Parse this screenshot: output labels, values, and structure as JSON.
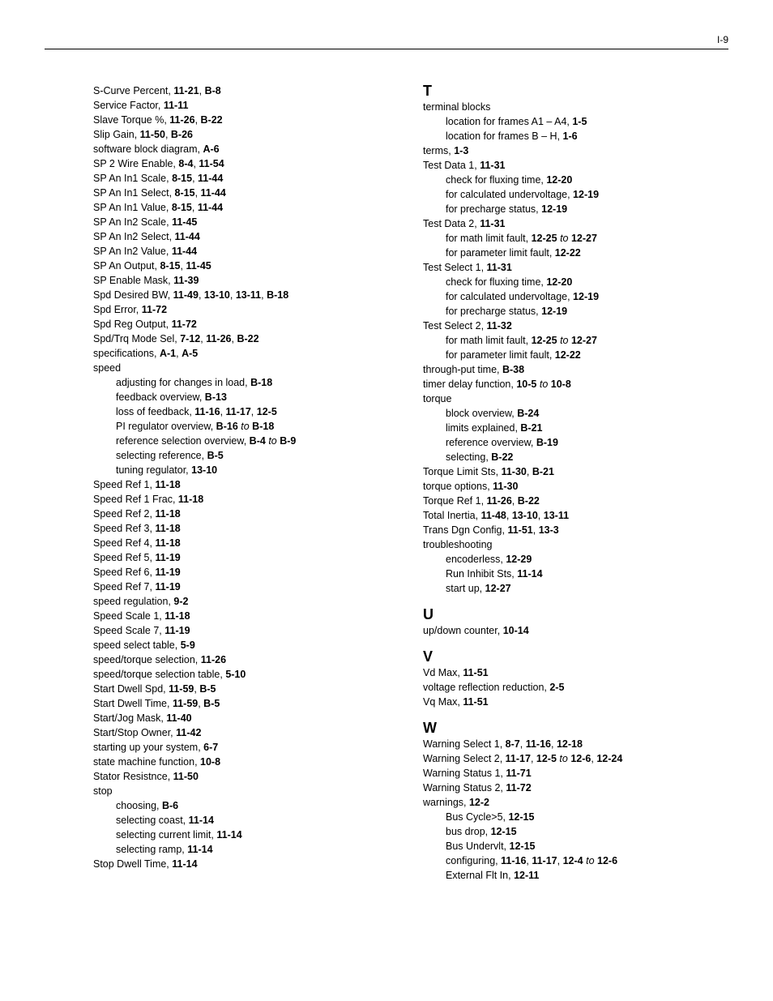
{
  "page_number": "I-9",
  "left_column": [
    {
      "t": "entry",
      "text": "S-Curve Percent, ",
      "refs": [
        {
          "b": "11-21"
        },
        ", ",
        {
          "b": "B-8"
        }
      ]
    },
    {
      "t": "entry",
      "text": "Service Factor, ",
      "refs": [
        {
          "b": "11-11"
        }
      ]
    },
    {
      "t": "entry",
      "text": "Slave Torque %, ",
      "refs": [
        {
          "b": "11-26"
        },
        ", ",
        {
          "b": "B-22"
        }
      ]
    },
    {
      "t": "entry",
      "text": "Slip Gain, ",
      "refs": [
        {
          "b": "11-50"
        },
        ", ",
        {
          "b": "B-26"
        }
      ]
    },
    {
      "t": "entry",
      "text": "software block diagram, ",
      "refs": [
        {
          "b": "A-6"
        }
      ]
    },
    {
      "t": "entry",
      "text": "SP 2 Wire Enable, ",
      "refs": [
        {
          "b": "8-4"
        },
        ", ",
        {
          "b": "11-54"
        }
      ]
    },
    {
      "t": "entry",
      "text": "SP An In1 Scale, ",
      "refs": [
        {
          "b": "8-15"
        },
        ", ",
        {
          "b": "11-44"
        }
      ]
    },
    {
      "t": "entry",
      "text": "SP An In1 Select, ",
      "refs": [
        {
          "b": "8-15"
        },
        ", ",
        {
          "b": "11-44"
        }
      ]
    },
    {
      "t": "entry",
      "text": "SP An In1 Value, ",
      "refs": [
        {
          "b": "8-15"
        },
        ", ",
        {
          "b": "11-44"
        }
      ]
    },
    {
      "t": "entry",
      "text": "SP An In2 Scale, ",
      "refs": [
        {
          "b": "11-45"
        }
      ]
    },
    {
      "t": "entry",
      "text": "SP An In2 Select, ",
      "refs": [
        {
          "b": "11-44"
        }
      ]
    },
    {
      "t": "entry",
      "text": "SP An In2 Value, ",
      "refs": [
        {
          "b": "11-44"
        }
      ]
    },
    {
      "t": "entry",
      "text": "SP An Output, ",
      "refs": [
        {
          "b": "8-15"
        },
        ", ",
        {
          "b": "11-45"
        }
      ]
    },
    {
      "t": "entry",
      "text": "SP Enable Mask, ",
      "refs": [
        {
          "b": "11-39"
        }
      ]
    },
    {
      "t": "entry",
      "text": "Spd Desired BW, ",
      "refs": [
        {
          "b": "11-49"
        },
        ", ",
        {
          "b": "13-10"
        },
        ", ",
        {
          "b": "13-11"
        },
        ", ",
        {
          "b": "B-18"
        }
      ]
    },
    {
      "t": "entry",
      "text": "Spd Error, ",
      "refs": [
        {
          "b": "11-72"
        }
      ]
    },
    {
      "t": "entry",
      "text": "Spd Reg Output, ",
      "refs": [
        {
          "b": "11-72"
        }
      ]
    },
    {
      "t": "entry",
      "text": "Spd/Trq Mode Sel, ",
      "refs": [
        {
          "b": "7-12"
        },
        ", ",
        {
          "b": "11-26"
        },
        ", ",
        {
          "b": "B-22"
        }
      ]
    },
    {
      "t": "entry",
      "text": "specifications, ",
      "refs": [
        {
          "b": "A-1"
        },
        ", ",
        {
          "b": "A-5"
        }
      ]
    },
    {
      "t": "entry",
      "text": "speed",
      "refs": []
    },
    {
      "t": "sub",
      "text": "adjusting for changes in load, ",
      "refs": [
        {
          "b": "B-18"
        }
      ]
    },
    {
      "t": "sub",
      "text": "feedback overview, ",
      "refs": [
        {
          "b": "B-13"
        }
      ]
    },
    {
      "t": "sub",
      "text": "loss of feedback, ",
      "refs": [
        {
          "b": "11-16"
        },
        ", ",
        {
          "b": "11-17"
        },
        ", ",
        {
          "b": "12-5"
        }
      ]
    },
    {
      "t": "sub",
      "text": "PI regulator overview, ",
      "refs": [
        {
          "b": "B-16"
        },
        " ",
        {
          "i": "to"
        },
        " ",
        {
          "b": "B-18"
        }
      ]
    },
    {
      "t": "sub",
      "text": "reference selection overview, ",
      "refs": [
        {
          "b": "B-4"
        },
        " ",
        {
          "i": "to"
        },
        " ",
        {
          "b": "B-9"
        }
      ]
    },
    {
      "t": "sub",
      "text": "selecting reference, ",
      "refs": [
        {
          "b": "B-5"
        }
      ]
    },
    {
      "t": "sub",
      "text": "tuning regulator, ",
      "refs": [
        {
          "b": "13-10"
        }
      ]
    },
    {
      "t": "entry",
      "text": "Speed Ref 1, ",
      "refs": [
        {
          "b": "11-18"
        }
      ]
    },
    {
      "t": "entry",
      "text": "Speed Ref 1 Frac, ",
      "refs": [
        {
          "b": "11-18"
        }
      ]
    },
    {
      "t": "entry",
      "text": "Speed Ref 2, ",
      "refs": [
        {
          "b": "11-18"
        }
      ]
    },
    {
      "t": "entry",
      "text": "Speed Ref 3, ",
      "refs": [
        {
          "b": "11-18"
        }
      ]
    },
    {
      "t": "entry",
      "text": "Speed Ref 4, ",
      "refs": [
        {
          "b": "11-18"
        }
      ]
    },
    {
      "t": "entry",
      "text": "Speed Ref 5, ",
      "refs": [
        {
          "b": "11-19"
        }
      ]
    },
    {
      "t": "entry",
      "text": "Speed Ref 6, ",
      "refs": [
        {
          "b": "11-19"
        }
      ]
    },
    {
      "t": "entry",
      "text": "Speed Ref 7, ",
      "refs": [
        {
          "b": "11-19"
        }
      ]
    },
    {
      "t": "entry",
      "text": "speed regulation, ",
      "refs": [
        {
          "b": "9-2"
        }
      ]
    },
    {
      "t": "entry",
      "text": "Speed Scale 1, ",
      "refs": [
        {
          "b": "11-18"
        }
      ]
    },
    {
      "t": "entry",
      "text": "Speed Scale 7, ",
      "refs": [
        {
          "b": "11-19"
        }
      ]
    },
    {
      "t": "entry",
      "text": "speed select table, ",
      "refs": [
        {
          "b": "5-9"
        }
      ]
    },
    {
      "t": "entry",
      "text": "speed/torque selection, ",
      "refs": [
        {
          "b": "11-26"
        }
      ]
    },
    {
      "t": "entry",
      "text": "speed/torque selection table, ",
      "refs": [
        {
          "b": "5-10"
        }
      ]
    },
    {
      "t": "entry",
      "text": "Start Dwell Spd, ",
      "refs": [
        {
          "b": "11-59"
        },
        ", ",
        {
          "b": "B-5"
        }
      ]
    },
    {
      "t": "entry",
      "text": "Start Dwell Time, ",
      "refs": [
        {
          "b": "11-59"
        },
        ", ",
        {
          "b": "B-5"
        }
      ]
    },
    {
      "t": "entry",
      "text": "Start/Jog Mask, ",
      "refs": [
        {
          "b": "11-40"
        }
      ]
    },
    {
      "t": "entry",
      "text": "Start/Stop Owner, ",
      "refs": [
        {
          "b": "11-42"
        }
      ]
    },
    {
      "t": "entry",
      "text": "starting up your system, ",
      "refs": [
        {
          "b": "6-7"
        }
      ]
    },
    {
      "t": "entry",
      "text": "state machine function, ",
      "refs": [
        {
          "b": "10-8"
        }
      ]
    },
    {
      "t": "entry",
      "text": "Stator Resistnce, ",
      "refs": [
        {
          "b": "11-50"
        }
      ]
    },
    {
      "t": "entry",
      "text": "stop",
      "refs": []
    },
    {
      "t": "sub",
      "text": "choosing, ",
      "refs": [
        {
          "b": "B-6"
        }
      ]
    },
    {
      "t": "sub",
      "text": "selecting coast, ",
      "refs": [
        {
          "b": "11-14"
        }
      ]
    },
    {
      "t": "sub",
      "text": "selecting current limit, ",
      "refs": [
        {
          "b": "11-14"
        }
      ]
    },
    {
      "t": "sub",
      "text": "selecting ramp, ",
      "refs": [
        {
          "b": "11-14"
        }
      ]
    },
    {
      "t": "entry",
      "text": "Stop Dwell Time, ",
      "refs": [
        {
          "b": "11-14"
        }
      ]
    }
  ],
  "right_column": [
    {
      "t": "head",
      "text": "T",
      "first": true
    },
    {
      "t": "entry",
      "text": "terminal blocks",
      "refs": []
    },
    {
      "t": "sub",
      "text": "location for frames A1 – A4, ",
      "refs": [
        {
          "b": "1-5"
        }
      ]
    },
    {
      "t": "sub",
      "text": "location for frames B – H, ",
      "refs": [
        {
          "b": "1-6"
        }
      ]
    },
    {
      "t": "entry",
      "text": "terms, ",
      "refs": [
        {
          "b": "1-3"
        }
      ]
    },
    {
      "t": "entry",
      "text": "Test Data 1, ",
      "refs": [
        {
          "b": "11-31"
        }
      ]
    },
    {
      "t": "sub",
      "text": "check for fluxing time, ",
      "refs": [
        {
          "b": "12-20"
        }
      ]
    },
    {
      "t": "sub",
      "text": "for calculated undervoltage, ",
      "refs": [
        {
          "b": "12-19"
        }
      ]
    },
    {
      "t": "sub",
      "text": "for precharge status, ",
      "refs": [
        {
          "b": "12-19"
        }
      ]
    },
    {
      "t": "entry",
      "text": "Test Data 2, ",
      "refs": [
        {
          "b": "11-31"
        }
      ]
    },
    {
      "t": "sub",
      "text": "for math limit fault, ",
      "refs": [
        {
          "b": "12-25"
        },
        " ",
        {
          "i": "to"
        },
        " ",
        {
          "b": "12-27"
        }
      ]
    },
    {
      "t": "sub",
      "text": "for parameter limit fault, ",
      "refs": [
        {
          "b": "12-22"
        }
      ]
    },
    {
      "t": "entry",
      "text": "Test Select 1, ",
      "refs": [
        {
          "b": "11-31"
        }
      ]
    },
    {
      "t": "sub",
      "text": "check for fluxing time, ",
      "refs": [
        {
          "b": "12-20"
        }
      ]
    },
    {
      "t": "sub",
      "text": "for calculated undervoltage, ",
      "refs": [
        {
          "b": "12-19"
        }
      ]
    },
    {
      "t": "sub",
      "text": "for precharge status, ",
      "refs": [
        {
          "b": "12-19"
        }
      ]
    },
    {
      "t": "entry",
      "text": "Test Select 2, ",
      "refs": [
        {
          "b": "11-32"
        }
      ]
    },
    {
      "t": "sub",
      "text": "for math limit fault, ",
      "refs": [
        {
          "b": "12-25"
        },
        " ",
        {
          "i": "to"
        },
        " ",
        {
          "b": "12-27"
        }
      ]
    },
    {
      "t": "sub",
      "text": "for parameter limit fault, ",
      "refs": [
        {
          "b": "12-22"
        }
      ]
    },
    {
      "t": "entry",
      "text": "through-put time, ",
      "refs": [
        {
          "b": "B-38"
        }
      ]
    },
    {
      "t": "entry",
      "text": "timer delay function, ",
      "refs": [
        {
          "b": "10-5"
        },
        " ",
        {
          "i": "to"
        },
        " ",
        {
          "b": "10-8"
        }
      ]
    },
    {
      "t": "entry",
      "text": "torque",
      "refs": []
    },
    {
      "t": "sub",
      "text": "block overview, ",
      "refs": [
        {
          "b": "B-24"
        }
      ]
    },
    {
      "t": "sub",
      "text": "limits explained, ",
      "refs": [
        {
          "b": "B-21"
        }
      ]
    },
    {
      "t": "sub",
      "text": "reference overview, ",
      "refs": [
        {
          "b": "B-19"
        }
      ]
    },
    {
      "t": "sub",
      "text": "selecting, ",
      "refs": [
        {
          "b": "B-22"
        }
      ]
    },
    {
      "t": "entry",
      "text": "Torque Limit Sts, ",
      "refs": [
        {
          "b": "11-30"
        },
        ", ",
        {
          "b": "B-21"
        }
      ]
    },
    {
      "t": "entry",
      "text": "torque options, ",
      "refs": [
        {
          "b": "11-30"
        }
      ]
    },
    {
      "t": "entry",
      "text": "Torque Ref 1, ",
      "refs": [
        {
          "b": "11-26"
        },
        ", ",
        {
          "b": "B-22"
        }
      ]
    },
    {
      "t": "entry",
      "text": "Total Inertia, ",
      "refs": [
        {
          "b": "11-48"
        },
        ", ",
        {
          "b": "13-10"
        },
        ", ",
        {
          "b": "13-11"
        }
      ]
    },
    {
      "t": "entry",
      "text": "Trans Dgn Config, ",
      "refs": [
        {
          "b": "11-51"
        },
        ", ",
        {
          "b": "13-3"
        }
      ]
    },
    {
      "t": "entry",
      "text": "troubleshooting",
      "refs": []
    },
    {
      "t": "sub",
      "text": "encoderless, ",
      "refs": [
        {
          "b": "12-29"
        }
      ]
    },
    {
      "t": "sub",
      "text": "Run Inhibit Sts, ",
      "refs": [
        {
          "b": "11-14"
        }
      ]
    },
    {
      "t": "sub",
      "text": "start up, ",
      "refs": [
        {
          "b": "12-27"
        }
      ]
    },
    {
      "t": "head",
      "text": "U"
    },
    {
      "t": "entry",
      "text": "up/down counter, ",
      "refs": [
        {
          "b": "10-14"
        }
      ]
    },
    {
      "t": "head",
      "text": "V"
    },
    {
      "t": "entry",
      "text": "Vd Max, ",
      "refs": [
        {
          "b": "11-51"
        }
      ]
    },
    {
      "t": "entry",
      "text": "voltage reflection reduction, ",
      "refs": [
        {
          "b": "2-5"
        }
      ]
    },
    {
      "t": "entry",
      "text": "Vq Max, ",
      "refs": [
        {
          "b": "11-51"
        }
      ]
    },
    {
      "t": "head",
      "text": "W"
    },
    {
      "t": "entry",
      "text": "Warning Select 1, ",
      "refs": [
        {
          "b": "8-7"
        },
        ", ",
        {
          "b": "11-16"
        },
        ", ",
        {
          "b": "12-18"
        }
      ]
    },
    {
      "t": "entry",
      "text": "Warning Select 2, ",
      "refs": [
        {
          "b": "11-17"
        },
        ", ",
        {
          "b": "12-5"
        },
        " ",
        {
          "i": "to"
        },
        " ",
        {
          "b": "12-6"
        },
        ", ",
        {
          "b": "12-24"
        }
      ]
    },
    {
      "t": "entry",
      "text": "Warning Status 1, ",
      "refs": [
        {
          "b": "11-71"
        }
      ]
    },
    {
      "t": "entry",
      "text": "Warning Status 2, ",
      "refs": [
        {
          "b": "11-72"
        }
      ]
    },
    {
      "t": "entry",
      "text": "warnings, ",
      "refs": [
        {
          "b": "12-2"
        }
      ]
    },
    {
      "t": "sub",
      "text": "Bus Cycle>5, ",
      "refs": [
        {
          "b": "12-15"
        }
      ]
    },
    {
      "t": "sub",
      "text": "bus drop, ",
      "refs": [
        {
          "b": "12-15"
        }
      ]
    },
    {
      "t": "sub",
      "text": "Bus Undervlt, ",
      "refs": [
        {
          "b": "12-15"
        }
      ]
    },
    {
      "t": "sub",
      "text": "configuring, ",
      "refs": [
        {
          "b": "11-16"
        },
        ", ",
        {
          "b": "11-17"
        },
        ", ",
        {
          "b": "12-4"
        },
        " ",
        {
          "i": "to"
        },
        " ",
        {
          "b": "12-6"
        }
      ]
    },
    {
      "t": "sub",
      "text": "External Flt In, ",
      "refs": [
        {
          "b": "12-11"
        }
      ]
    }
  ]
}
